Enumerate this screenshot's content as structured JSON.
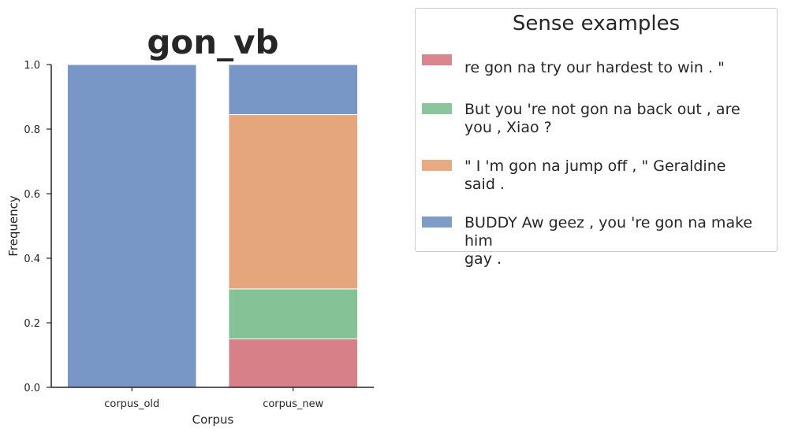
{
  "chart_data": {
    "type": "bar",
    "stacked": true,
    "title": "gon_vb",
    "xlabel": "Corpus",
    "ylabel": "Frequency",
    "ylim": [
      0,
      1.0
    ],
    "yticks": [
      "0.0",
      "0.2",
      "0.4",
      "0.6",
      "0.8",
      "1.0"
    ],
    "categories": [
      "corpus_old",
      "corpus_new"
    ],
    "series": [
      {
        "name": "re gon na try our hardest to win . \"",
        "color": "#d0646c",
        "values": [
          0.0,
          0.15
        ]
      },
      {
        "name": "But you 're not gon na back out , are\nyou , Xiao ?",
        "color": "#6ab57f",
        "values": [
          0.0,
          0.155
        ]
      },
      {
        "name": "\" I 'm gon na jump off , \" Geraldine\nsaid .",
        "color": "#e0925f",
        "values": [
          0.0,
          0.54
        ]
      },
      {
        "name": "BUDDY Aw geez , you 're gon na make him\ngay .",
        "color": "#5b80ba",
        "values": [
          1.0,
          0.155
        ]
      }
    ],
    "legend_title": "Sense examples",
    "legend_position": "outside-right",
    "grid": false
  }
}
